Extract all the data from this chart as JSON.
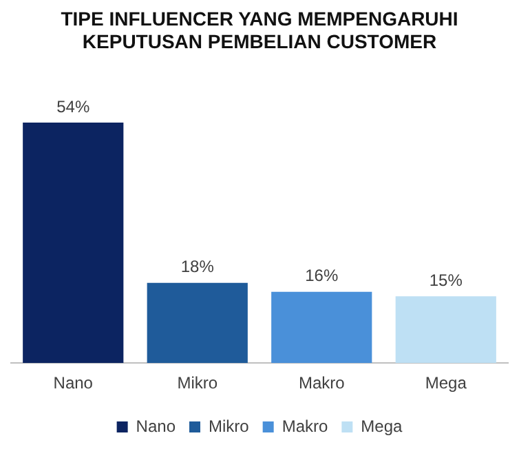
{
  "chart_data": {
    "type": "bar",
    "title": "TIPE INFLUENCER YANG MEMPENGARUHI KEPUTUSAN PEMBELIAN CUSTOMER",
    "categories": [
      "Nano",
      "Mikro",
      "Makro",
      "Mega"
    ],
    "series": [
      {
        "name": "Nano",
        "color": "#0c2461",
        "values": [
          54,
          null,
          null,
          null
        ],
        "value_labels": [
          "54%",
          null,
          null,
          null
        ]
      },
      {
        "name": "Mikro",
        "color": "#1f5b9a",
        "values": [
          null,
          18,
          null,
          null
        ],
        "value_labels": [
          null,
          "18%",
          null,
          null
        ]
      },
      {
        "name": "Makro",
        "color": "#4a90d9",
        "values": [
          null,
          null,
          16,
          null
        ],
        "value_labels": [
          null,
          null,
          "16%",
          null
        ]
      },
      {
        "name": "Mega",
        "color": "#bee0f4",
        "values": [
          null,
          null,
          null,
          15
        ],
        "value_labels": [
          null,
          null,
          null,
          "15%"
        ]
      }
    ],
    "legend": "bottom"
  }
}
